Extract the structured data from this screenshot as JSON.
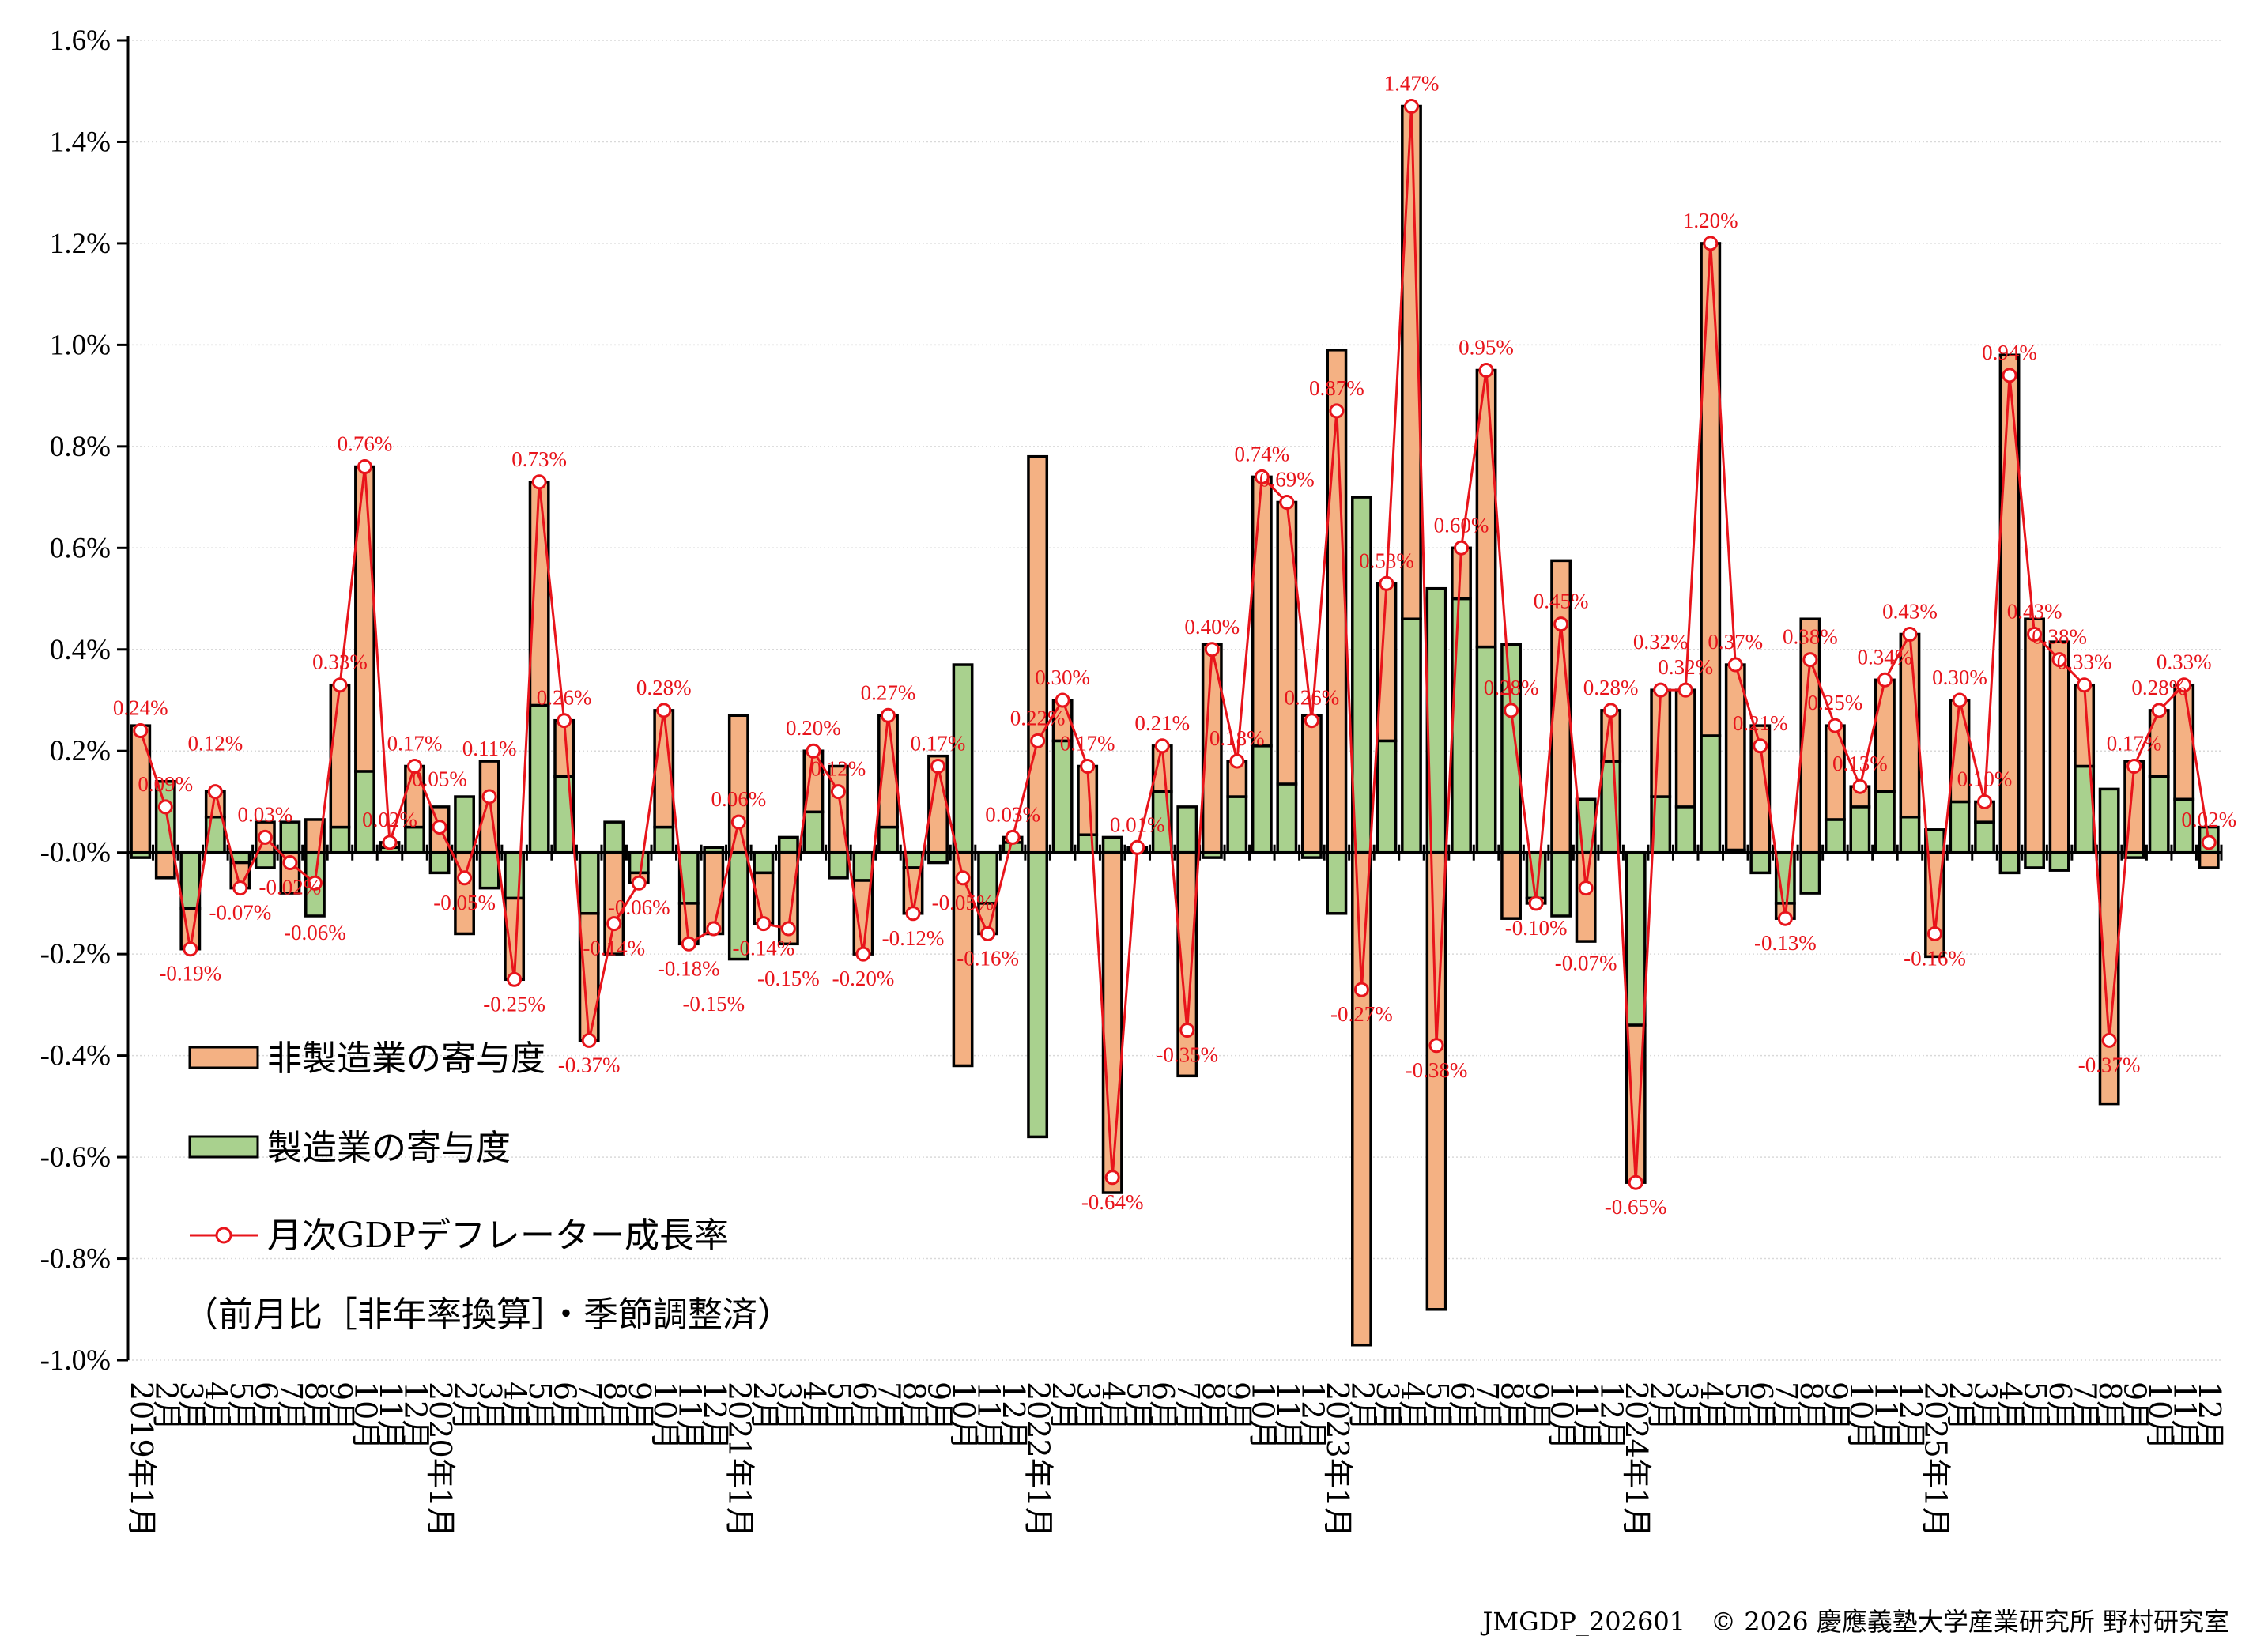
{
  "chart_data": {
    "type": "bar+line",
    "ylim": [
      -1.0,
      1.6
    ],
    "ytick_step": 0.2,
    "ytick_format": "percent-1dp",
    "grid": true,
    "legend_placement": "bottom-left",
    "colors": {
      "nonmfg": "#f4b183",
      "mfg": "#a9d18e",
      "line": "#e8141b",
      "outline": "#000000"
    },
    "categories": [
      "2019年1月",
      "2月",
      "3月",
      "4月",
      "5月",
      "6月",
      "7月",
      "8月",
      "9月",
      "10月",
      "11月",
      "12月",
      "2020年1月",
      "2月",
      "3月",
      "4月",
      "5月",
      "6月",
      "7月",
      "8月",
      "9月",
      "10月",
      "11月",
      "12月",
      "2021年1月",
      "2月",
      "3月",
      "4月",
      "5月",
      "6月",
      "7月",
      "8月",
      "9月",
      "10月",
      "11月",
      "12月",
      "2022年1月",
      "2月",
      "3月",
      "4月",
      "5月",
      "6月",
      "7月",
      "8月",
      "9月",
      "10月",
      "11月",
      "12月",
      "2023年1月",
      "2月",
      "3月",
      "4月",
      "5月",
      "6月",
      "7月",
      "8月",
      "9月",
      "10月",
      "11月",
      "12月",
      "2024年1月",
      "2月",
      "3月",
      "4月",
      "5月",
      "6月",
      "7月",
      "8月",
      "9月",
      "10月",
      "11月",
      "12月",
      "2025年1月",
      "2月",
      "3月",
      "4月",
      "5月",
      "6月",
      "7月",
      "8月",
      "9月",
      "10月",
      "11月",
      "12月"
    ],
    "series": [
      {
        "name": "非製造業の寄与度",
        "type": "stacked-bar",
        "values": [
          0.25,
          -0.05,
          -0.08,
          0.05,
          -0.05,
          0.06,
          -0.08,
          0.065,
          0.28,
          0.6,
          0.01,
          0.12,
          0.09,
          -0.16,
          0.18,
          -0.16,
          0.44,
          0.11,
          -0.25,
          -0.2,
          -0.02,
          0.23,
          -0.08,
          -0.16,
          0.27,
          -0.1,
          -0.18,
          0.12,
          0.17,
          -0.145,
          0.22,
          -0.09,
          0.19,
          -0.42,
          -0.06,
          0.01,
          0.78,
          0.08,
          0.135,
          -0.67,
          0.005,
          0.09,
          -0.44,
          0.41,
          0.07,
          0.53,
          0.555,
          0.27,
          0.99,
          -0.97,
          0.31,
          1.01,
          -0.9,
          0.1,
          0.545,
          -0.13,
          -0.01,
          0.575,
          -0.175,
          0.1,
          -0.31,
          0.21,
          0.23,
          0.97,
          0.365,
          0.25,
          -0.03,
          0.46,
          0.185,
          0.04,
          0.22,
          0.36,
          -0.205,
          0.2,
          0.04,
          0.98,
          0.46,
          0.415,
          0.16,
          -0.495,
          0.18,
          0.13,
          0.225,
          -0.03
        ]
      },
      {
        "name": "製造業の寄与度",
        "type": "stacked-bar",
        "values": [
          -0.01,
          0.14,
          -0.11,
          0.07,
          -0.02,
          -0.03,
          0.06,
          -0.125,
          0.05,
          0.16,
          0.01,
          0.05,
          -0.04,
          0.11,
          -0.07,
          -0.09,
          0.29,
          0.15,
          -0.12,
          0.06,
          -0.04,
          0.05,
          -0.1,
          0.01,
          -0.21,
          -0.04,
          0.03,
          0.08,
          -0.05,
          -0.055,
          0.05,
          -0.03,
          -0.02,
          0.37,
          -0.1,
          0.02,
          -0.56,
          0.22,
          0.035,
          0.03,
          0.005,
          0.12,
          0.09,
          -0.01,
          0.11,
          0.21,
          0.135,
          -0.01,
          -0.12,
          0.7,
          0.22,
          0.46,
          0.52,
          0.5,
          0.405,
          0.41,
          -0.09,
          -0.125,
          0.105,
          0.18,
          -0.34,
          0.11,
          0.09,
          0.23,
          0.005,
          -0.04,
          -0.1,
          -0.08,
          0.065,
          0.09,
          0.12,
          0.07,
          0.045,
          0.1,
          0.06,
          -0.04,
          -0.03,
          -0.035,
          0.17,
          0.125,
          -0.01,
          0.15,
          0.105,
          0.05
        ]
      },
      {
        "name": "月次GDPデフレーター成長率",
        "type": "line",
        "values": [
          0.24,
          0.09,
          -0.19,
          0.12,
          -0.07,
          0.03,
          -0.02,
          -0.06,
          0.33,
          0.76,
          0.02,
          0.17,
          0.05,
          -0.05,
          0.11,
          -0.25,
          0.73,
          0.26,
          -0.37,
          -0.14,
          -0.06,
          0.28,
          -0.18,
          -0.15,
          0.06,
          -0.14,
          -0.15,
          0.2,
          0.12,
          -0.2,
          0.27,
          -0.12,
          0.17,
          -0.05,
          -0.16,
          0.03,
          0.22,
          0.3,
          0.17,
          -0.64,
          0.01,
          0.21,
          -0.35,
          0.4,
          0.18,
          0.74,
          0.69,
          0.26,
          0.87,
          -0.27,
          0.53,
          1.47,
          -0.38,
          0.6,
          0.95,
          0.28,
          -0.1,
          0.45,
          -0.07,
          0.28,
          -0.65,
          0.32,
          0.32,
          1.2,
          0.37,
          0.21,
          -0.13,
          0.38,
          0.25,
          0.13,
          0.34,
          0.43,
          -0.16,
          0.3,
          0.1,
          0.94,
          0.43,
          0.38,
          0.33,
          -0.37,
          0.17,
          0.28,
          0.33,
          0.02
        ]
      }
    ],
    "note": "（前月比［非年率換算］・季節調整済）"
  },
  "footer": "JMGDP_202601　© 2026 慶應義塾大学産業研究所 野村研究室"
}
